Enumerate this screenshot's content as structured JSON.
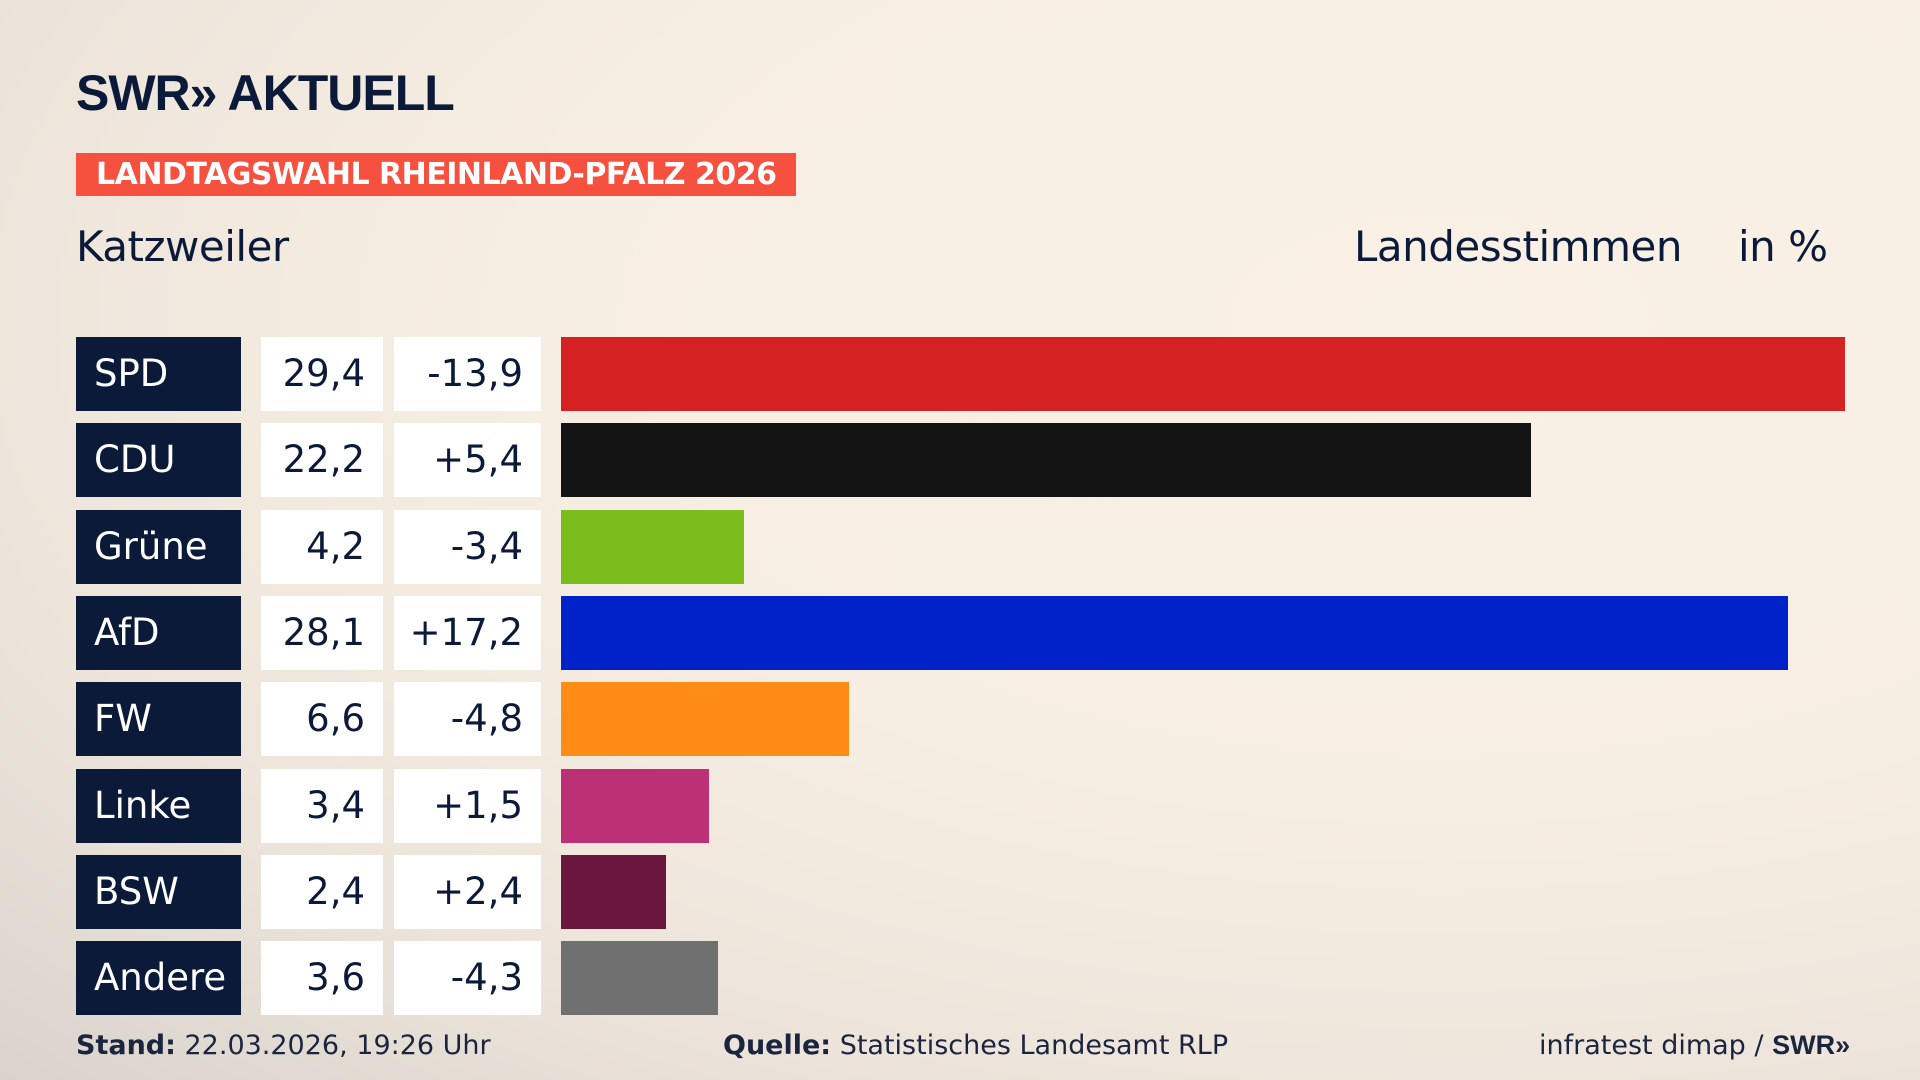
{
  "logo": {
    "text": "SWR» AKTUELL"
  },
  "banner": "LANDTAGSWAHL RHEINLAND-PFALZ 2026",
  "place": "Katzweiler",
  "header": {
    "measure": "Landesstimmen",
    "unit": "in %"
  },
  "chart_data": {
    "type": "bar",
    "orientation": "horizontal",
    "categories": [
      "SPD",
      "CDU",
      "Grüne",
      "AfD",
      "FW",
      "Linke",
      "BSW",
      "Andere"
    ],
    "values": [
      29.4,
      22.2,
      4.2,
      28.1,
      6.6,
      3.4,
      2.4,
      3.6
    ],
    "values_label": [
      "29,4",
      "22,2",
      "4,2",
      "28,1",
      "6,6",
      "3,4",
      "2,4",
      "3,6"
    ],
    "diff_label": [
      "-13,9",
      "+5,4",
      "-3,4",
      "+17,2",
      "-4,8",
      "+1,5",
      "+2,4",
      "-4,3"
    ],
    "diff": [
      -13.9,
      5.4,
      -3.4,
      17.2,
      -4.8,
      1.5,
      2.4,
      -4.3
    ],
    "colors": [
      "#d52121",
      "#141414",
      "#7abd1c",
      "#0022c8",
      "#ff8c17",
      "#bd3075",
      "#6a163f",
      "#707070"
    ],
    "xlim": [
      0,
      29.4
    ],
    "grid": false
  },
  "footer": {
    "stand_label": "Stand:",
    "stand_value": " 22.03.2026, 19:26 Uhr",
    "source_label": "Quelle:",
    "source_value": " Statistisches Landesamt RLP",
    "credit": "infratest dimap / ",
    "credit_logo": "SWR»"
  }
}
